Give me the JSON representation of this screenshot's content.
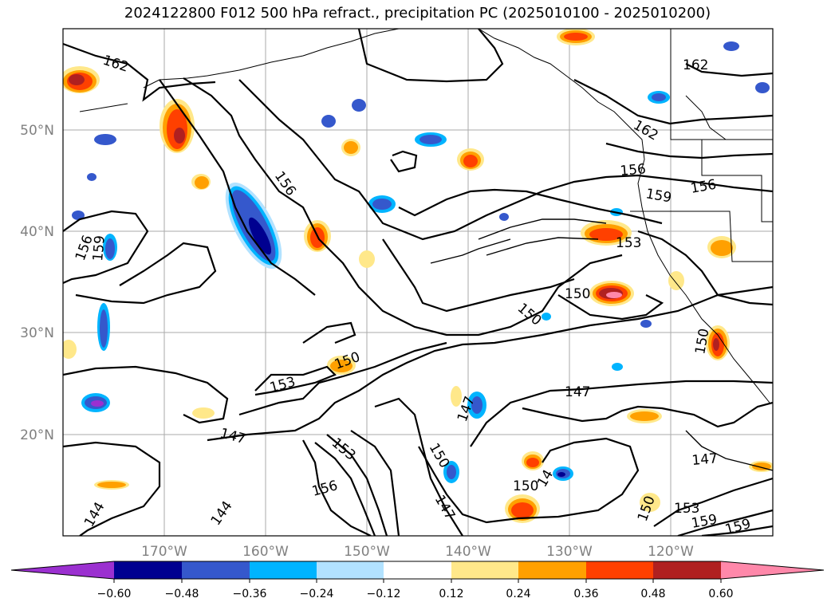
{
  "title": "2024122800 F012 500 hPa refract., precipitation PC (2025010100 - 2025010200)",
  "map": {
    "lon_labels": [
      "170°W",
      "160°W",
      "150°W",
      "140°W",
      "130°W",
      "120°W"
    ],
    "lat_labels": [
      "50°N",
      "40°N",
      "30°N",
      "20°N"
    ],
    "contour_labels": [
      "162",
      "162",
      "162",
      "156",
      "156",
      "156",
      "156",
      "159",
      "159",
      "153",
      "153",
      "153",
      "150",
      "150",
      "150",
      "150",
      "150",
      "150",
      "147",
      "147",
      "147",
      "147",
      "147",
      "144",
      "144",
      "14",
      "156",
      "153",
      "159",
      "159",
      "150"
    ]
  },
  "colorbar": {
    "ticks": [
      "−0.60",
      "−0.48",
      "−0.36",
      "−0.24",
      "−0.12",
      "0.12",
      "0.24",
      "0.36",
      "0.48",
      "0.60"
    ],
    "colors": {
      "lt_neg060": "#9b30d0",
      "neg060_neg048": "#000090",
      "neg048_neg036": "#3558cc",
      "neg036_neg024": "#00b4ff",
      "neg024_neg012": "#b2e2ff",
      "neg012_012": "#ffffff",
      "p012_024": "#ffe88a",
      "p024_036": "#ffa000",
      "p036_048": "#ff4000",
      "p048_060": "#b02020",
      "gt_060": "#ff88aa"
    }
  }
}
